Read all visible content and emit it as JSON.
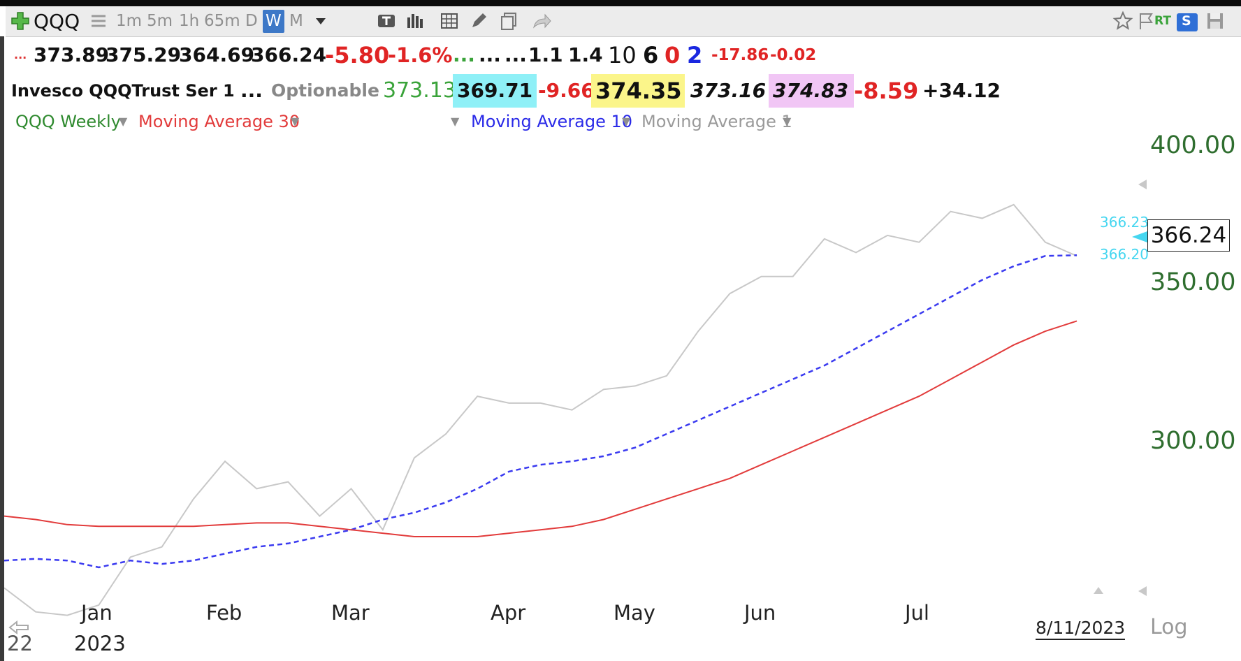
{
  "toolbar": {
    "symbol": "QQQ",
    "timeframes": [
      "1m",
      "5m",
      "1h",
      "65m",
      "D",
      "W",
      "M"
    ],
    "active_timeframe": "W",
    "icons": [
      "add-symbol-icon",
      "list-icon",
      "chevron-down-icon",
      "text-tool-icon",
      "bar-style-icon",
      "grid-icon",
      "pencil-icon",
      "copy-icon",
      "share-icon",
      "star-icon",
      "flag-icon",
      "rt-icon",
      "scan-icon",
      "save-icon"
    ],
    "rt_label": "RT",
    "s_label": "S"
  },
  "quote_row1": {
    "lead": "...",
    "open": "373.89",
    "high": "375.29",
    "low": "364.69",
    "close": "366.24",
    "change": "-5.80",
    "change_pct": "-1.6%",
    "dots1": "...",
    "dots2": "...",
    "dots3": "...",
    "v1": "1.1",
    "v2": "1.4",
    "v3": "10",
    "v4": "6",
    "v5": "0",
    "v6": "2",
    "v7": "-17.86",
    "v8": "-0.02"
  },
  "quote_row2": {
    "name": "Invesco QQQTrust Ser 1",
    "dots": "...",
    "optionable": "Optionable",
    "p1": "373.13",
    "p2": "369.71",
    "p3": "-9.66",
    "p4": "374.35",
    "p5": "373.16",
    "p6": "374.83",
    "p7": "-8.59",
    "p8": "+34.12"
  },
  "legend": {
    "price": "QQQ Weekly",
    "ma30": "Moving Average 30",
    "ma10": "Moving Average 10",
    "ma1": "Moving Average 1"
  },
  "colors": {
    "price": "#c8c8c8",
    "ma30": "#e23b3b",
    "ma10": "#3a3af0",
    "axis": "#2f6e2f",
    "cyan": "#45d6f0"
  },
  "chart_data": {
    "type": "line",
    "x": [
      "Dec 16",
      "Dec 23",
      "Dec 30",
      "Jan 6",
      "Jan 13",
      "Jan 20",
      "Jan 27",
      "Feb 3",
      "Feb 10",
      "Feb 17",
      "Feb 24",
      "Mar 3",
      "Mar 10",
      "Mar 17",
      "Mar 24",
      "Mar 31",
      "Apr 6",
      "Apr 14",
      "Apr 21",
      "Apr 28",
      "May 5",
      "May 12",
      "May 19",
      "May 26",
      "Jun 2",
      "Jun 9",
      "Jun 16",
      "Jun 23",
      "Jun 30",
      "Jul 7",
      "Jul 14",
      "Jul 21",
      "Jul 28",
      "Aug 4",
      "Aug 11"
    ],
    "series": [
      {
        "name": "Moving Average 1",
        "values": [
          269,
          262,
          261,
          264,
          278,
          281,
          295,
          306,
          298,
          300,
          290,
          298,
          286,
          307,
          314,
          325,
          323,
          323,
          321,
          327,
          328,
          331,
          344,
          355,
          360,
          360,
          371,
          367,
          372,
          370,
          379,
          377,
          381,
          370,
          366
        ]
      },
      {
        "name": "Moving Average 10",
        "values": [
          277,
          277.5,
          277,
          275,
          277,
          276,
          277,
          279,
          281,
          282,
          284,
          286,
          289,
          291,
          294,
          298,
          303,
          305,
          306,
          307.5,
          310,
          314,
          318,
          322,
          326,
          330,
          334,
          339,
          344,
          349,
          354,
          359,
          363,
          366,
          366.2
        ]
      },
      {
        "name": "Moving Average 30",
        "values": [
          290,
          289,
          287.5,
          287,
          287,
          287,
          287,
          287.5,
          288,
          288,
          287,
          286,
          285,
          284,
          284,
          284,
          285,
          286,
          287,
          289,
          292,
          295,
          298,
          301,
          305,
          309,
          313,
          317,
          321,
          325,
          330,
          335,
          340,
          344,
          347
        ]
      }
    ],
    "y_ticks": [
      "400.00",
      "350.00",
      "300.00"
    ],
    "ylim": [
      255,
      402
    ],
    "x_tick_labels": [
      "Jan",
      "Feb",
      "Mar",
      "Apr",
      "May",
      "Jun",
      "Jul"
    ],
    "year_label": "2023",
    "prev_year_label": "22",
    "last_date": "8/11/2023",
    "last_price": "366.24",
    "ma_label_upper": "366.23",
    "ma_label_lower": "366.20",
    "scale_label": "Log",
    "grid": false
  }
}
